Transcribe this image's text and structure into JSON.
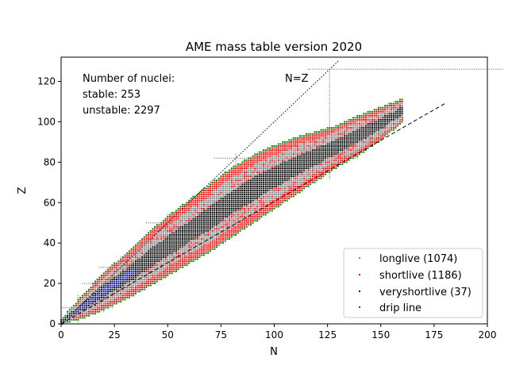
{
  "chart_data": {
    "type": "scatter",
    "title": "AME mass table version 2020",
    "xlabel": "N",
    "ylabel": "Z",
    "xlim": [
      0,
      200
    ],
    "ylim": [
      0,
      132
    ],
    "xticks": [
      "0",
      "25",
      "50",
      "75",
      "100",
      "125",
      "150",
      "175",
      "200"
    ],
    "yticks": [
      "0",
      "20",
      "40",
      "60",
      "80",
      "100",
      "120"
    ],
    "grid": false,
    "legend_position": "bottom-right",
    "annotations": {
      "nuclei_heading": "Number of nuclei:",
      "stable": "stable: 253",
      "unstable": "unstable: 2297",
      "nz_label": "N=Z"
    },
    "series": [
      {
        "name": "longlive (1074)",
        "color": "#808080"
      },
      {
        "name": "shortlive (1186)",
        "color": "#ff0000"
      },
      {
        "name": "veryshortlive (37)",
        "color": "#000000"
      },
      {
        "name": "drip line",
        "color": "#008000"
      }
    ],
    "stable_color": "#0000ff",
    "nz_line": {
      "x": [
        0,
        130
      ],
      "y": [
        0,
        130
      ],
      "style": "dotted"
    },
    "stability_line": {
      "x": [
        0,
        180
      ],
      "y": [
        0,
        109
      ],
      "style": "dashed"
    },
    "magic_numbers": [
      8,
      20,
      28,
      50,
      82,
      126
    ],
    "valley_of_stability": {
      "N": [
        0,
        10,
        20,
        30,
        40,
        50,
        60,
        70,
        80,
        90,
        100,
        110,
        120,
        130,
        140,
        150,
        160
      ],
      "Z_min": [
        0,
        3,
        7,
        12,
        18,
        24,
        30,
        36,
        43,
        50,
        57,
        64,
        71,
        78,
        84,
        91,
        100
      ],
      "Z_max": [
        2,
        14,
        25,
        34,
        44,
        53,
        61,
        69,
        77,
        83,
        88,
        92,
        95,
        98,
        103,
        107,
        111
      ]
    }
  }
}
